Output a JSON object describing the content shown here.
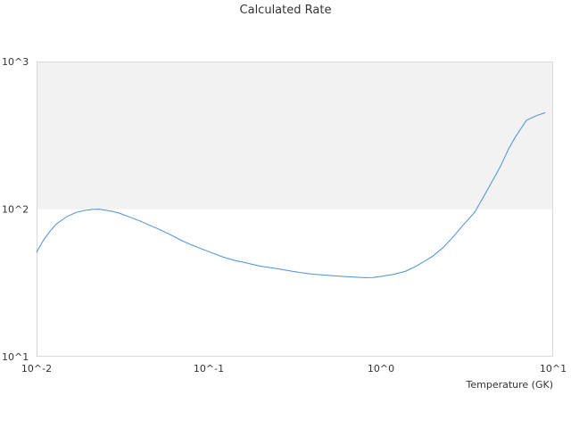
{
  "chart_data": {
    "type": "line",
    "title": "Calculated Rate",
    "xlabel": "Temperature (GK)",
    "ylabel": "",
    "x_scale": "log",
    "y_scale": "log",
    "xlim": [
      0.01,
      10
    ],
    "ylim": [
      10,
      1000
    ],
    "x_ticks": [
      {
        "value": 0.01,
        "label": "10^-2"
      },
      {
        "value": 0.1,
        "label": "10^-1"
      },
      {
        "value": 1,
        "label": "10^0"
      },
      {
        "value": 10,
        "label": "10^1"
      }
    ],
    "y_ticks": [
      {
        "value": 10,
        "label": "10^1"
      },
      {
        "value": 100,
        "label": "10^2"
      },
      {
        "value": 1000,
        "label": "10^3"
      }
    ],
    "shaded_band": {
      "from": 100,
      "to": 1000,
      "color": "#f2f2f2"
    },
    "grid": false,
    "legend": "none",
    "series": [
      {
        "color": "#4a90d9",
        "x": [
          0.01,
          0.011,
          0.012,
          0.013,
          0.015,
          0.017,
          0.019,
          0.021,
          0.023,
          0.025,
          0.028,
          0.03,
          0.035,
          0.04,
          0.045,
          0.05,
          0.06,
          0.07,
          0.08,
          0.09,
          0.1,
          0.12,
          0.14,
          0.16,
          0.2,
          0.25,
          0.3,
          0.35,
          0.4,
          0.5,
          0.6,
          0.7,
          0.8,
          0.9,
          1.0,
          1.2,
          1.4,
          1.6,
          1.8,
          2.0,
          2.3,
          2.6,
          3.0,
          3.5,
          4.0,
          4.5,
          5.0,
          5.5,
          6.0,
          7.0,
          8.0,
          9.0
        ],
        "y": [
          51,
          62,
          71,
          79,
          89,
          95,
          98,
          99.5,
          99.8,
          98.5,
          96,
          94,
          88,
          83,
          78,
          74,
          67,
          61,
          57,
          54,
          51.5,
          47.5,
          45,
          43.5,
          41,
          39.5,
          38,
          37,
          36.2,
          35.5,
          35,
          34.6,
          34.3,
          34.4,
          35,
          36.2,
          38,
          41,
          44.5,
          48,
          55,
          64,
          78,
          95,
          125,
          160,
          200,
          255,
          305,
          400,
          430,
          450
        ]
      }
    ]
  }
}
